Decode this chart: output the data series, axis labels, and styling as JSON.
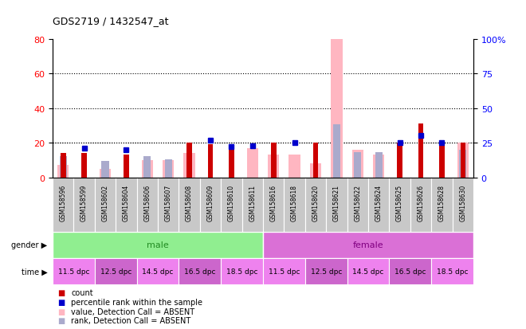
{
  "title": "GDS2719 / 1432547_at",
  "samples": [
    "GSM158596",
    "GSM158599",
    "GSM158602",
    "GSM158604",
    "GSM158606",
    "GSM158607",
    "GSM158608",
    "GSM158609",
    "GSM158610",
    "GSM158611",
    "GSM158616",
    "GSM158618",
    "GSM158620",
    "GSM158621",
    "GSM158622",
    "GSM158624",
    "GSM158625",
    "GSM158626",
    "GSM158628",
    "GSM158630"
  ],
  "count_red": [
    14,
    14,
    0,
    13,
    0,
    0,
    20,
    19,
    18,
    0,
    20,
    0,
    20,
    0,
    0,
    0,
    20,
    31,
    20,
    20
  ],
  "rank_blue": [
    0,
    21,
    0,
    20,
    0,
    0,
    0,
    27,
    22,
    23,
    0,
    25,
    0,
    0,
    0,
    0,
    25,
    30,
    25,
    0
  ],
  "value_absent_pink": [
    7,
    0,
    5,
    0,
    10,
    10,
    14,
    0,
    0,
    17,
    13,
    13,
    8,
    80,
    16,
    13,
    0,
    0,
    0,
    20
  ],
  "rank_absent_lightblue": [
    15,
    0,
    12,
    0,
    15,
    13,
    0,
    0,
    0,
    0,
    0,
    0,
    0,
    38,
    18,
    18,
    0,
    0,
    0,
    20
  ],
  "ylim_left": [
    0,
    80
  ],
  "ylim_right": [
    0,
    100
  ],
  "yticks_left": [
    0,
    20,
    40,
    60,
    80
  ],
  "yticks_right": [
    0,
    25,
    50,
    75,
    100
  ],
  "grid_lines": [
    20,
    40,
    60
  ],
  "color_red": "#CC0000",
  "color_blue": "#0000CC",
  "color_pink": "#FFB6C1",
  "color_lightblue": "#AAAACC",
  "color_gender_male": "#90EE90",
  "color_gender_female": "#DA70D6",
  "time_colors": [
    "#EE82EE",
    "#CC66CC",
    "#EE82EE",
    "#CC66CC",
    "#EE82EE"
  ],
  "time_labels": [
    "11.5 dpc",
    "12.5 dpc",
    "14.5 dpc",
    "16.5 dpc",
    "18.5 dpc"
  ],
  "xtick_bg": "#C8C8C8"
}
